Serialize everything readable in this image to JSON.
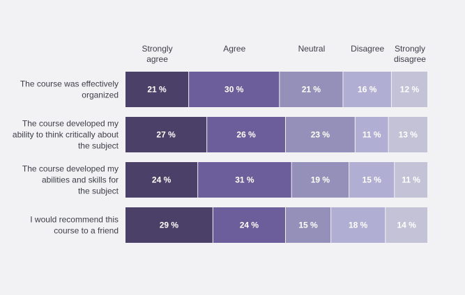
{
  "chart_data": {
    "type": "bar",
    "orientation": "horizontal",
    "stacked": true,
    "normalized": true,
    "title": "",
    "xlabel": "",
    "ylabel": "",
    "categories": [
      "The course was effectively organized",
      "The course developed my ability to think critically about the subject",
      "The course developed my abilities and skills for the subject",
      "I would recommend this course to a friend"
    ],
    "category_lines": [
      [
        "The course was effectively",
        "organized"
      ],
      [
        "The course developed my",
        "ability to think critically about",
        "the subject"
      ],
      [
        "The course developed my",
        "abilities and skills for",
        "the subject"
      ],
      [
        "I would recommend this",
        "course to a friend"
      ]
    ],
    "series": [
      {
        "name": "Strongly agree",
        "name_lines": [
          "Strongly",
          "agree"
        ],
        "color": "#4b4068",
        "values": [
          21,
          27,
          24,
          29
        ]
      },
      {
        "name": "Agree",
        "name_lines": [
          "Agree"
        ],
        "color": "#6c5d9b",
        "values": [
          30,
          26,
          31,
          24
        ]
      },
      {
        "name": "Neutral",
        "name_lines": [
          "Neutral"
        ],
        "color": "#9490b9",
        "values": [
          21,
          23,
          19,
          15
        ]
      },
      {
        "name": "Disagree",
        "name_lines": [
          "Disagree"
        ],
        "color": "#b1aed4",
        "values": [
          16,
          11,
          15,
          18
        ]
      },
      {
        "name": "Strongly disagree",
        "name_lines": [
          "Strongly",
          "disagree"
        ],
        "color": "#c3c2d6",
        "values": [
          12,
          13,
          11,
          14
        ]
      }
    ],
    "value_suffix": " %",
    "legend": "top",
    "grid": false
  }
}
